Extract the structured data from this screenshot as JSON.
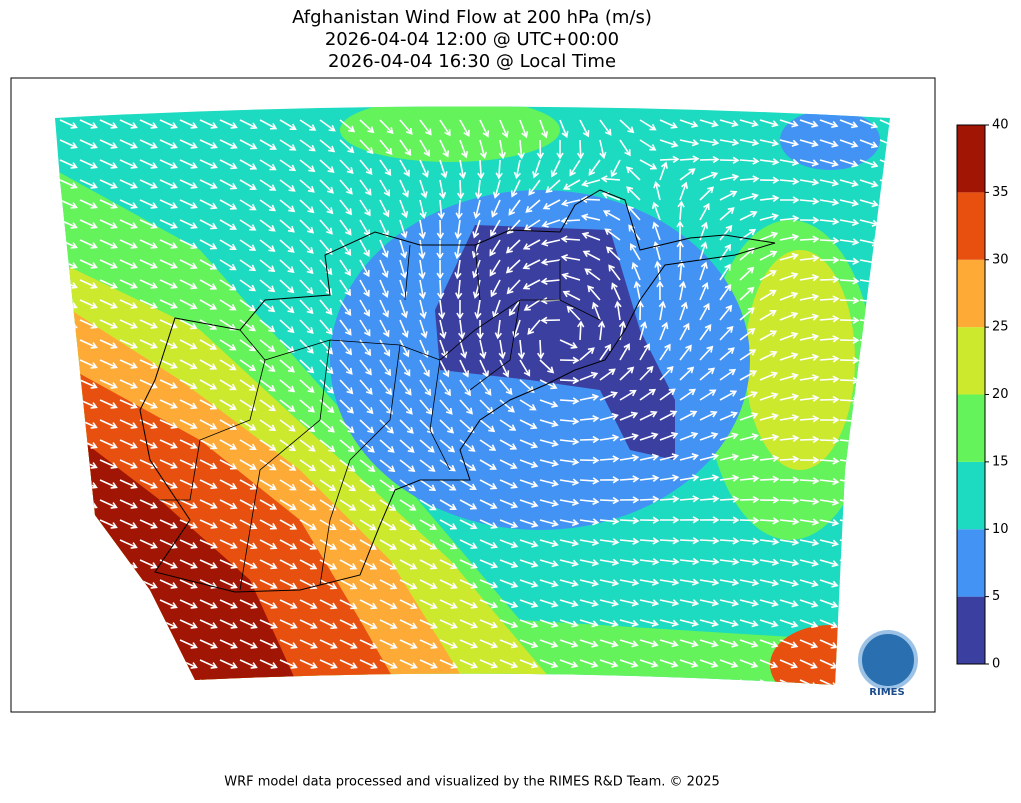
{
  "header": {
    "title": "Afghanistan Wind Flow at 200 hPa (m/s)",
    "utc": "2026-04-04 12:00 @ UTC+00:00",
    "local": "2026-04-04 16:30 @ Local Time"
  },
  "colorbar": {
    "ticks": [
      0,
      5,
      10,
      15,
      20,
      25,
      30,
      35,
      40
    ],
    "colors": [
      "#3b3f9f",
      "#4393f5",
      "#1ddbc0",
      "#65f35b",
      "#cde92e",
      "#fdab36",
      "#e8500f",
      "#a01503"
    ]
  },
  "logo": "RIMES",
  "footer": "WRF model data processed and visualized by the RIMES R&D Team. © 2025"
}
